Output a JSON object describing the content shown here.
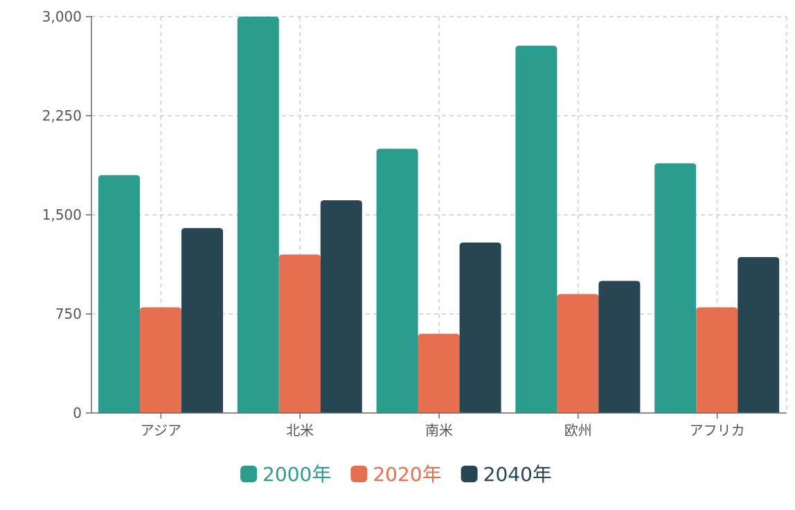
{
  "chart_data": {
    "type": "bar",
    "categories": [
      "アジア",
      "北米",
      "南米",
      "欧州",
      "アフリカ"
    ],
    "series": [
      {
        "name": "2000年",
        "color": "#2a9d8f",
        "values": [
          1800,
          3000,
          2000,
          2780,
          1890
        ]
      },
      {
        "name": "2020年",
        "color": "#e76f51",
        "values": [
          800,
          1200,
          600,
          900,
          800
        ]
      },
      {
        "name": "2040年",
        "color": "#264653",
        "values": [
          1400,
          1610,
          1290,
          1000,
          1180
        ]
      }
    ],
    "ylim": [
      0,
      3000
    ],
    "yticks": [
      0,
      750,
      1500,
      2250,
      3000
    ],
    "ytick_labels": [
      "0",
      "750",
      "1,500",
      "2,250",
      "3,000"
    ],
    "grid": true,
    "legend_position": "bottom-center",
    "title": "",
    "xlabel": "",
    "ylabel": ""
  }
}
